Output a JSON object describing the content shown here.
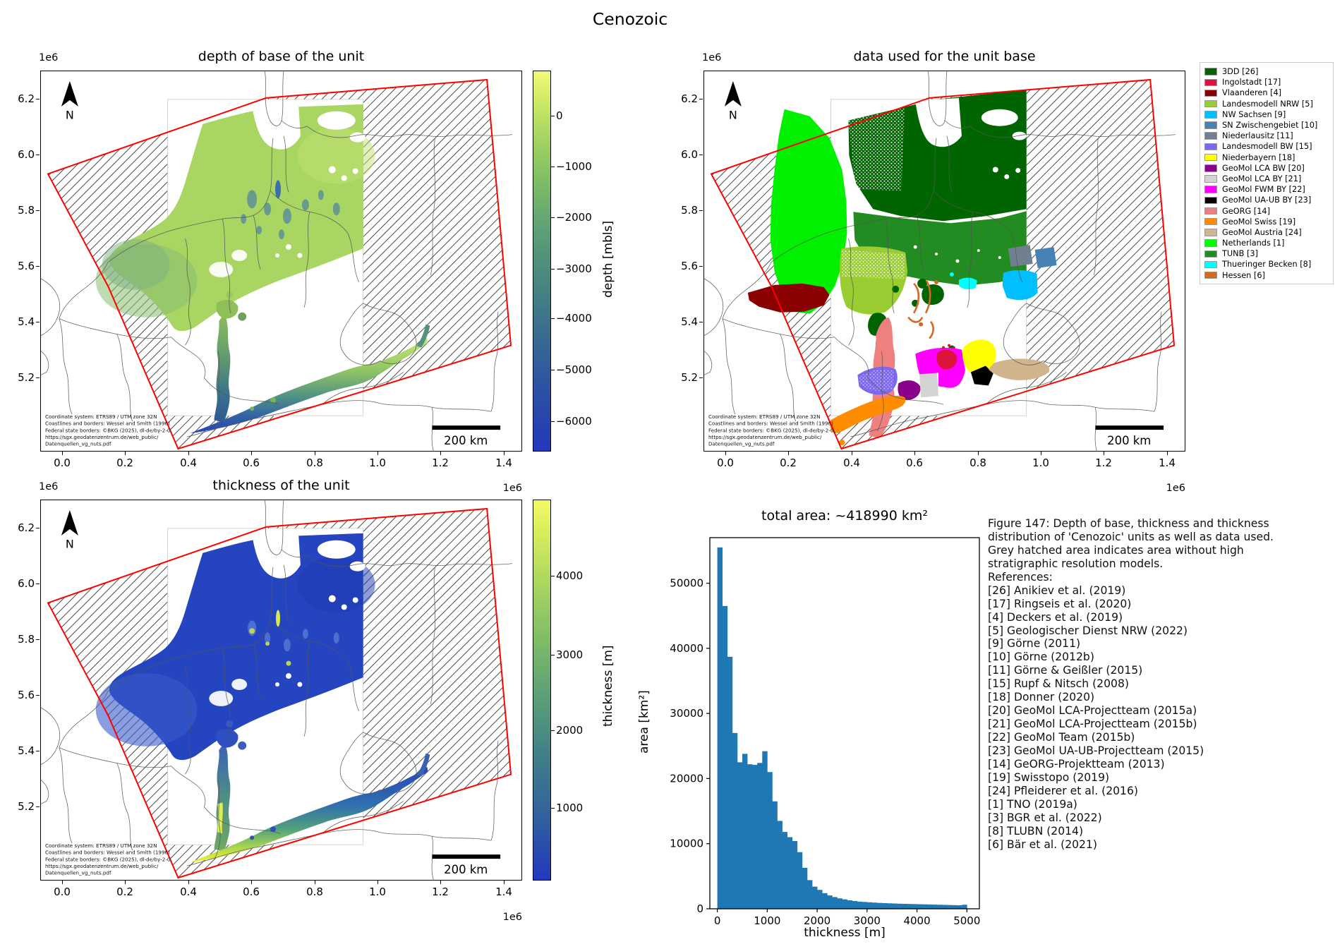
{
  "page_title": "Cenozoic",
  "maps": {
    "shared": {
      "north_label": "N",
      "scalebar_label": "200 km",
      "y_offset_label": "1e6",
      "x_offset_label": "1e6",
      "xticks": [
        "0.0",
        "0.2",
        "0.4",
        "0.6",
        "0.8",
        "1.0",
        "1.2",
        "1.4"
      ],
      "yticks": [
        "6.2",
        "6.0",
        "5.8",
        "5.6",
        "5.4",
        "5.2"
      ],
      "boundary_color": "#ff0000",
      "attribution_lines": [
        "Coordinate system: ETRS89 / UTM zone 32N",
        "Coastlines and borders: Wessel and Smith (1996)",
        "Federal state borders: ©BKG (2025), dl-de/by-2-0,",
        "https://sgx.geodatenzentrum.de/web_public/",
        "Datenquellen_vg_nuts.pdf"
      ]
    },
    "depth": {
      "title": "depth of base of the unit",
      "colorbar_label": "depth [mbls]",
      "colorbar_ticks": [
        "0",
        "−1000",
        "−2000",
        "−3000",
        "−4000",
        "−5000",
        "−6000"
      ]
    },
    "data_used": {
      "title": "data used for the unit base",
      "legend": [
        {
          "label": "3DD [26]",
          "color": "#006400"
        },
        {
          "label": "Ingolstadt [17]",
          "color": "#dc143c"
        },
        {
          "label": "Vlaanderen [4]",
          "color": "#8b0000"
        },
        {
          "label": "Landesmodell NRW [5]",
          "color": "#9acd32"
        },
        {
          "label": "NW Sachsen [9]",
          "color": "#00bfff"
        },
        {
          "label": "SN Zwischengebiet [10]",
          "color": "#4682b4"
        },
        {
          "label": "Niederlausitz [11]",
          "color": "#708090"
        },
        {
          "label": "Landesmodell BW [15]",
          "color": "#7b68ee"
        },
        {
          "label": "Niederbayern [18]",
          "color": "#ffff00"
        },
        {
          "label": "GeoMol LCA BW [20]",
          "color": "#8b008b"
        },
        {
          "label": "GeoMol LCA BY [21]",
          "color": "#d3d3d3"
        },
        {
          "label": "GeoMol FWM BY [22]",
          "color": "#ff00ff"
        },
        {
          "label": "GeoMol UA-UB BY [23]",
          "color": "#000000"
        },
        {
          "label": "GeORG [14]",
          "color": "#f08080"
        },
        {
          "label": "GeoMol Swiss [19]",
          "color": "#ff8c00"
        },
        {
          "label": "GeoMol Austria [24]",
          "color": "#d2b48c"
        },
        {
          "label": "Netherlands [1]",
          "color": "#00ff00"
        },
        {
          "label": "TUNB [3]",
          "color": "#228b22"
        },
        {
          "label": "Thueringer Becken [8]",
          "color": "#00ffff"
        },
        {
          "label": "Hessen [6]",
          "color": "#d2691e"
        }
      ]
    },
    "thickness": {
      "title": "thickness of the unit",
      "colorbar_label": "thickness [m]",
      "colorbar_ticks": [
        "4000",
        "3000",
        "2000",
        "1000"
      ]
    }
  },
  "histogram": {
    "title": "total area: ~418990 km²",
    "xlabel": "thickness [m]",
    "ylabel": "area [km²]",
    "xticks": [
      "0",
      "1000",
      "2000",
      "3000",
      "4000",
      "5000"
    ],
    "yticks": [
      "0",
      "10000",
      "20000",
      "30000",
      "40000",
      "50000"
    ]
  },
  "caption": {
    "lines": [
      "Figure 147: Depth of base, thickness and thickness",
      "distribution of 'Cenozoic' units as well as data used.",
      "Grey hatched area indicates area without high",
      "stratigraphic resolution models.",
      "References:",
      "[26] Anikiev et al. (2019)",
      "[17] Ringseis et al. (2020)",
      "[4] Deckers et al. (2019)",
      "[5] Geologischer Dienst NRW (2022)",
      "[9] Görne (2011)",
      "[10] Görne (2012b)",
      "[11] Görne & Geißler (2015)",
      "[15] Rupf & Nitsch (2008)",
      "[18] Donner (2020)",
      "[20] GeoMol LCA-Projectteam (2015a)",
      "[21] GeoMol LCA-Projectteam (2015b)",
      "[22] GeoMol Team (2015b)",
      "[23] GeoMol UA-UB-Projectteam (2015)",
      "[14] GeORG-Projektteam (2013)",
      "[19] Swisstopo (2019)",
      "[24] Pfleiderer et al. (2016)",
      "[1] TNO (2019a)",
      "[3] BGR et al. (2022)",
      "[8] TLUBN (2014)",
      "[6] Bär et al. (2021)"
    ]
  },
  "chart_data": {
    "type": "bar",
    "title": "total area: ~418990 km²",
    "xlabel": "thickness [m]",
    "ylabel": "area [km²]",
    "bar_color": "#1f77b4",
    "bin_width_m": 100,
    "bin_start_m": 0,
    "xlim": [
      -150,
      5250
    ],
    "ylim": [
      0,
      57000
    ],
    "xtick_values": [
      0,
      1000,
      2000,
      3000,
      4000,
      5000
    ],
    "ytick_values": [
      0,
      10000,
      20000,
      30000,
      40000,
      50000
    ],
    "total_area_km2": 418990,
    "values": [
      55500,
      46500,
      38700,
      27000,
      22500,
      23800,
      22200,
      22100,
      22400,
      24200,
      21000,
      16500,
      13500,
      11800,
      11000,
      10400,
      8700,
      6300,
      4400,
      3400,
      2900,
      2400,
      2050,
      1800,
      1600,
      1450,
      1300,
      1200,
      1100,
      1050,
      1000,
      950,
      900,
      870,
      840,
      810,
      780,
      760,
      740,
      720,
      700,
      680,
      660,
      640,
      620,
      600,
      580,
      560,
      540,
      620
    ]
  }
}
